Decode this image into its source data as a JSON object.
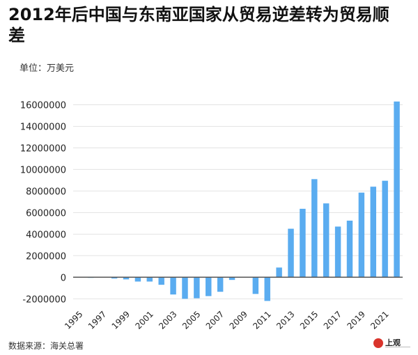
{
  "header": {
    "title": "2012年后中国与东南亚国家从贸易逆差转为贸易顺差",
    "unit": "单位：万美元"
  },
  "footer": {
    "source": "数据来源：海关总署",
    "logo_text": "上观"
  },
  "colors": {
    "bar": "#5aacf0",
    "axis": "#555555",
    "grid": "#e3e3e3"
  },
  "chart_data": {
    "type": "bar",
    "title": "2012年后中国与东南亚国家从贸易逆差转为贸易顺差",
    "ylabel": "单位：万美元",
    "xlabel": "",
    "categories": [
      "1995",
      "1996",
      "1997",
      "1998",
      "1999",
      "2000",
      "2001",
      "2002",
      "2003",
      "2004",
      "2005",
      "2006",
      "2007",
      "2008",
      "2009",
      "2010",
      "2011",
      "2012",
      "2013",
      "2014",
      "2015",
      "2016",
      "2017",
      "2018",
      "2019",
      "2020",
      "2021",
      "2022"
    ],
    "x_tick_labels": [
      "1995",
      "1997",
      "1999",
      "2001",
      "2003",
      "2005",
      "2007",
      "2009",
      "2011",
      "2013",
      "2015",
      "2017",
      "2019",
      "2021"
    ],
    "values": [
      -30000,
      -60000,
      -20000,
      -120000,
      -200000,
      -400000,
      -400000,
      -700000,
      -1600000,
      -2000000,
      -1950000,
      -1750000,
      -1350000,
      -250000,
      0,
      -1550000,
      -2200000,
      900000,
      4500000,
      6350000,
      9100000,
      6850000,
      4700000,
      5250000,
      7850000,
      8400000,
      8950000,
      16300000
    ],
    "y_ticks": [
      -2000000,
      0,
      2000000,
      4000000,
      6000000,
      8000000,
      10000000,
      12000000,
      14000000,
      16000000
    ],
    "ylim": [
      -2500000,
      17000000
    ],
    "grid": true,
    "legend": "none"
  }
}
